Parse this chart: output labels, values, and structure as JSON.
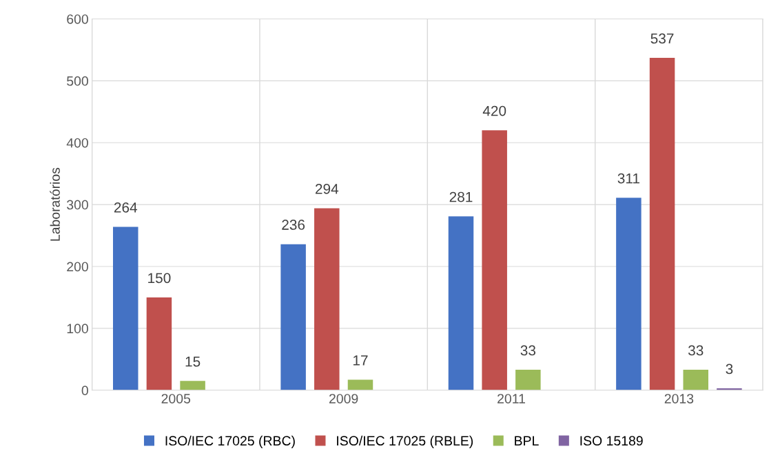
{
  "chart_data": {
    "type": "bar",
    "ylabel": "Laboratórios",
    "categories": [
      "2005",
      "2009",
      "2011",
      "2013"
    ],
    "series": [
      {
        "name": "ISO/IEC 17025 (RBC)",
        "color": "#4472c4",
        "values": [
          264,
          236,
          281,
          311
        ]
      },
      {
        "name": "ISO/IEC 17025 (RBLE)",
        "color": "#c0504d",
        "values": [
          150,
          294,
          420,
          537
        ]
      },
      {
        "name": "BPL",
        "color": "#9bbb59",
        "values": [
          15,
          17,
          33,
          33
        ]
      },
      {
        "name": "ISO 15189",
        "color": "#8064a2",
        "values": [
          null,
          null,
          null,
          3
        ]
      }
    ],
    "ylim": [
      0,
      600
    ],
    "yticks": [
      0,
      100,
      200,
      300,
      400,
      500,
      600
    ],
    "grid": true,
    "data_labels": true,
    "legend": "bottom"
  }
}
